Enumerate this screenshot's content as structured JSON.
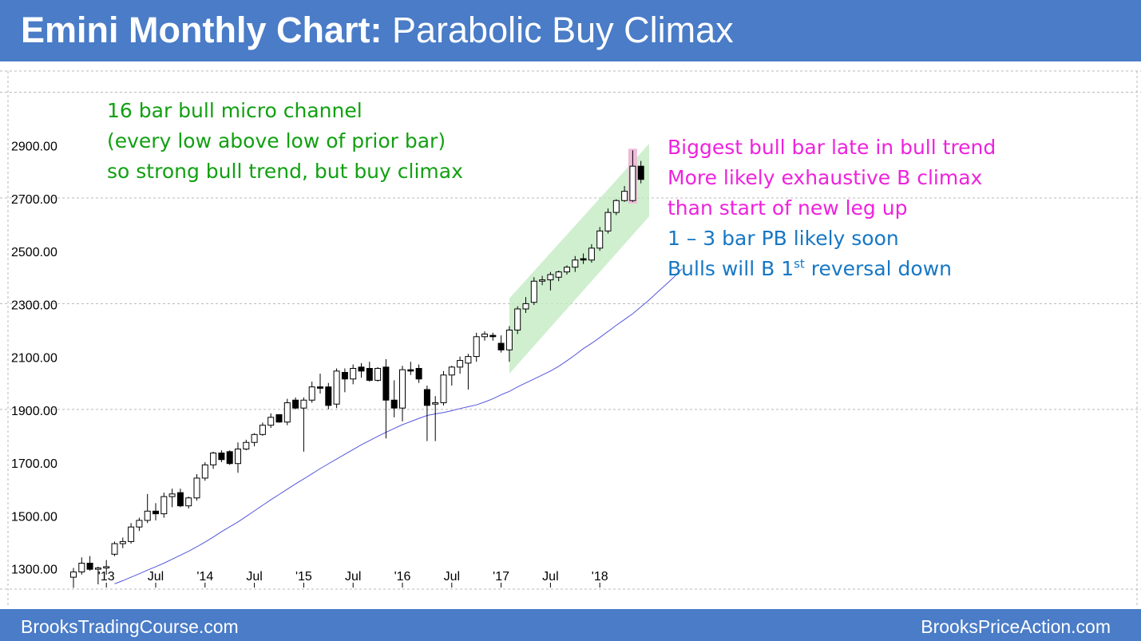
{
  "title": {
    "bold": "Emini Monthly Chart:",
    "rest": " Parabolic Buy Climax"
  },
  "footer": {
    "left": "BrooksTradingCourse.com",
    "right": "BrooksPriceAction.com"
  },
  "annotations": {
    "green": [
      "16 bar bull micro channel",
      "(every low above low of prior bar)",
      "so strong bull trend, but buy climax"
    ],
    "magenta": [
      "Biggest bull bar late in bull trend",
      "More  likely exhaustive B climax",
      "than start of new leg up"
    ],
    "blue_line1": "1 – 3 bar PB likely soon",
    "blue_line2": {
      "pre": "Bulls will B 1",
      "sup": "st",
      "post": " reversal down"
    }
  },
  "colors": {
    "header": "#4a7cc7",
    "green_text": "#11a011",
    "magenta_text": "#ee22dd",
    "blue_text": "#1677c4",
    "moving_average": "#5555dd",
    "channel_fill": "#bfeabf",
    "climax_highlight": "#eebbd9"
  },
  "chart_data": {
    "type": "candlestick",
    "title": "Emini Monthly Chart: Parabolic Buy Climax",
    "ylim": [
      1220,
      3180
    ],
    "y_ticks": [
      "1300.00",
      "1500.00",
      "1700.00",
      "1900.00",
      "2100.00",
      "2300.00",
      "2500.00",
      "2700.00",
      "2900.00"
    ],
    "x_tick_labels": [
      {
        "label": "'13",
        "index": 4
      },
      {
        "label": "Jul",
        "index": 10
      },
      {
        "label": "'14",
        "index": 16
      },
      {
        "label": "Jul",
        "index": 22
      },
      {
        "label": "'15",
        "index": 28
      },
      {
        "label": "Jul",
        "index": 34
      },
      {
        "label": "'16",
        "index": 40
      },
      {
        "label": "Jul",
        "index": 46
      },
      {
        "label": "'17",
        "index": 52
      },
      {
        "label": "Jul",
        "index": 58
      },
      {
        "label": "'18",
        "index": 64
      }
    ],
    "candles": [
      {
        "o": 1265,
        "h": 1300,
        "l": 1225,
        "c": 1285
      },
      {
        "o": 1285,
        "h": 1340,
        "l": 1275,
        "c": 1318
      },
      {
        "o": 1318,
        "h": 1345,
        "l": 1290,
        "c": 1295
      },
      {
        "o": 1295,
        "h": 1305,
        "l": 1238,
        "c": 1300
      },
      {
        "o": 1300,
        "h": 1330,
        "l": 1275,
        "c": 1305
      },
      {
        "o": 1352,
        "h": 1400,
        "l": 1345,
        "c": 1392
      },
      {
        "o": 1392,
        "h": 1415,
        "l": 1375,
        "c": 1400
      },
      {
        "o": 1400,
        "h": 1470,
        "l": 1392,
        "c": 1455
      },
      {
        "o": 1455,
        "h": 1490,
        "l": 1440,
        "c": 1480
      },
      {
        "o": 1480,
        "h": 1580,
        "l": 1470,
        "c": 1515
      },
      {
        "o": 1515,
        "h": 1545,
        "l": 1480,
        "c": 1505
      },
      {
        "o": 1505,
        "h": 1585,
        "l": 1490,
        "c": 1570
      },
      {
        "o": 1570,
        "h": 1600,
        "l": 1530,
        "c": 1580
      },
      {
        "o": 1585,
        "h": 1600,
        "l": 1530,
        "c": 1535
      },
      {
        "o": 1535,
        "h": 1570,
        "l": 1525,
        "c": 1565
      },
      {
        "o": 1565,
        "h": 1655,
        "l": 1555,
        "c": 1640
      },
      {
        "o": 1640,
        "h": 1700,
        "l": 1630,
        "c": 1690
      },
      {
        "o": 1690,
        "h": 1740,
        "l": 1675,
        "c": 1735
      },
      {
        "o": 1735,
        "h": 1745,
        "l": 1700,
        "c": 1710
      },
      {
        "o": 1740,
        "h": 1745,
        "l": 1690,
        "c": 1695
      },
      {
        "o": 1695,
        "h": 1775,
        "l": 1660,
        "c": 1750
      },
      {
        "o": 1750,
        "h": 1785,
        "l": 1745,
        "c": 1775
      },
      {
        "o": 1775,
        "h": 1810,
        "l": 1760,
        "c": 1805
      },
      {
        "o": 1805,
        "h": 1850,
        "l": 1800,
        "c": 1840
      },
      {
        "o": 1840,
        "h": 1885,
        "l": 1830,
        "c": 1870
      },
      {
        "o": 1880,
        "h": 1880,
        "l": 1850,
        "c": 1852
      },
      {
        "o": 1852,
        "h": 1940,
        "l": 1840,
        "c": 1925
      },
      {
        "o": 1935,
        "h": 1945,
        "l": 1900,
        "c": 1905
      },
      {
        "o": 1905,
        "h": 1945,
        "l": 1740,
        "c": 1935
      },
      {
        "o": 1935,
        "h": 2005,
        "l": 1925,
        "c": 1985
      },
      {
        "o": 1985,
        "h": 2035,
        "l": 1960,
        "c": 1980
      },
      {
        "o": 1985,
        "h": 2000,
        "l": 1900,
        "c": 1915
      },
      {
        "o": 1920,
        "h": 2055,
        "l": 1905,
        "c": 2045
      },
      {
        "o": 2040,
        "h": 2055,
        "l": 1965,
        "c": 2015
      },
      {
        "o": 2015,
        "h": 2070,
        "l": 1995,
        "c": 2055
      },
      {
        "o": 2060,
        "h": 2075,
        "l": 2020,
        "c": 2045
      },
      {
        "o": 2055,
        "h": 2080,
        "l": 2005,
        "c": 2010
      },
      {
        "o": 2010,
        "h": 2060,
        "l": 2005,
        "c": 2055
      },
      {
        "o": 2060,
        "h": 2090,
        "l": 1790,
        "c": 1935
      },
      {
        "o": 1935,
        "h": 2010,
        "l": 1870,
        "c": 1905
      },
      {
        "o": 1905,
        "h": 2065,
        "l": 1855,
        "c": 2050
      },
      {
        "o": 2050,
        "h": 2080,
        "l": 2030,
        "c": 2045
      },
      {
        "o": 2055,
        "h": 2070,
        "l": 2000,
        "c": 2015
      },
      {
        "o": 1975,
        "h": 1990,
        "l": 1780,
        "c": 1915
      },
      {
        "o": 1920,
        "h": 1950,
        "l": 1780,
        "c": 1925
      },
      {
        "o": 1925,
        "h": 2045,
        "l": 1915,
        "c": 2030
      },
      {
        "o": 2030,
        "h": 2065,
        "l": 1990,
        "c": 2060
      },
      {
        "o": 2060,
        "h": 2100,
        "l": 2035,
        "c": 2085
      },
      {
        "o": 2075,
        "h": 2110,
        "l": 1975,
        "c": 2100
      },
      {
        "o": 2100,
        "h": 2190,
        "l": 2080,
        "c": 2175
      },
      {
        "o": 2175,
        "h": 2195,
        "l": 2160,
        "c": 2185
      },
      {
        "o": 2180,
        "h": 2190,
        "l": 2160,
        "c": 2175
      },
      {
        "o": 2150,
        "h": 2180,
        "l": 2115,
        "c": 2125
      },
      {
        "o": 2125,
        "h": 2215,
        "l": 2080,
        "c": 2200
      },
      {
        "o": 2200,
        "h": 2290,
        "l": 2185,
        "c": 2280
      },
      {
        "o": 2280,
        "h": 2325,
        "l": 2265,
        "c": 2300
      },
      {
        "o": 2305,
        "h": 2400,
        "l": 2295,
        "c": 2385
      },
      {
        "o": 2385,
        "h": 2405,
        "l": 2370,
        "c": 2390
      },
      {
        "o": 2390,
        "h": 2420,
        "l": 2350,
        "c": 2410
      },
      {
        "o": 2400,
        "h": 2425,
        "l": 2385,
        "c": 2420
      },
      {
        "o": 2420,
        "h": 2445,
        "l": 2410,
        "c": 2438
      },
      {
        "o": 2438,
        "h": 2480,
        "l": 2420,
        "c": 2465
      },
      {
        "o": 2470,
        "h": 2490,
        "l": 2450,
        "c": 2465
      },
      {
        "o": 2465,
        "h": 2525,
        "l": 2455,
        "c": 2510
      },
      {
        "o": 2510,
        "h": 2590,
        "l": 2500,
        "c": 2575
      },
      {
        "o": 2575,
        "h": 2660,
        "l": 2565,
        "c": 2645
      },
      {
        "o": 2645,
        "h": 2695,
        "l": 2635,
        "c": 2690
      },
      {
        "o": 2690,
        "h": 2745,
        "l": 2685,
        "c": 2725
      },
      {
        "o": 2690,
        "h": 2880,
        "l": 2685,
        "c": 2820
      },
      {
        "o": 2820,
        "h": 2840,
        "l": 2755,
        "c": 2770
      }
    ],
    "moving_average": [
      1240,
      1252,
      1265,
      1278,
      1292,
      1305,
      1318,
      1333,
      1348,
      1363,
      1380,
      1398,
      1417,
      1437,
      1456,
      1474,
      1495,
      1516,
      1537,
      1558,
      1578,
      1598,
      1618,
      1637,
      1656,
      1676,
      1694,
      1712,
      1730,
      1748,
      1766,
      1782,
      1798,
      1813,
      1828,
      1842,
      1854,
      1866,
      1877,
      1883,
      1888,
      1895,
      1903,
      1910,
      1917,
      1928,
      1940,
      1955,
      1968,
      1985,
      2000,
      2015,
      2030,
      2045,
      2063,
      2084,
      2106,
      2130,
      2150,
      2172,
      2195,
      2218,
      2240,
      2262,
      2288,
      2314,
      2343,
      2371,
      2400,
      2432
    ],
    "channel": {
      "start_index": 53,
      "end_index": 70,
      "lower_start": 2035,
      "upper_start": 2320,
      "lower_end": 2630,
      "upper_end": 2905
    },
    "climax_bar_index": 68
  }
}
